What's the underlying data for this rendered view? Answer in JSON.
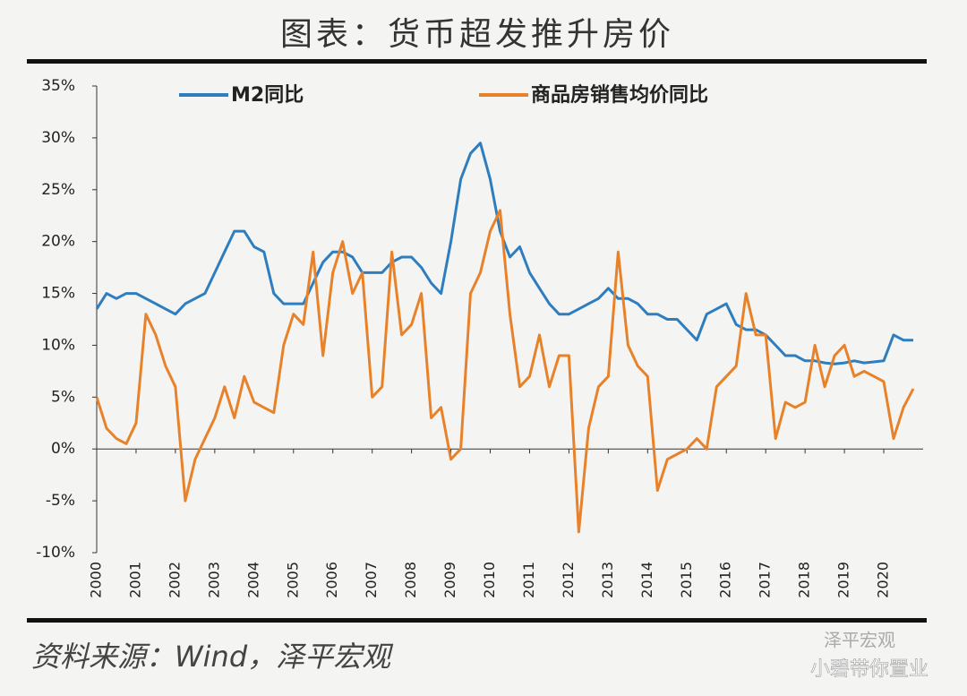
{
  "header": {
    "title": "图表：货币超发推升房价"
  },
  "chart_data": {
    "type": "line",
    "x": [
      2000,
      2000.25,
      2000.5,
      2000.75,
      2001,
      2001.25,
      2001.5,
      2001.75,
      2002,
      2002.25,
      2002.5,
      2002.75,
      2003,
      2003.25,
      2003.5,
      2003.75,
      2004,
      2004.25,
      2004.5,
      2004.75,
      2005,
      2005.25,
      2005.5,
      2005.75,
      2006,
      2006.25,
      2006.5,
      2006.75,
      2007,
      2007.25,
      2007.5,
      2007.75,
      2008,
      2008.25,
      2008.5,
      2008.75,
      2009,
      2009.25,
      2009.5,
      2009.75,
      2010,
      2010.25,
      2010.5,
      2010.75,
      2011,
      2011.25,
      2011.5,
      2011.75,
      2012,
      2012.25,
      2012.5,
      2012.75,
      2013,
      2013.25,
      2013.5,
      2013.75,
      2014,
      2014.25,
      2014.5,
      2014.75,
      2015,
      2015.25,
      2015.5,
      2015.75,
      2016,
      2016.25,
      2016.5,
      2016.75,
      2017,
      2017.25,
      2017.5,
      2017.75,
      2018,
      2018.25,
      2018.5,
      2018.75,
      2019,
      2019.25,
      2019.5,
      2019.75,
      2020,
      2020.25,
      2020.5,
      2020.75
    ],
    "series": [
      {
        "name": "M2同比",
        "color": "#2e7ebf",
        "values": [
          13.5,
          15,
          14.5,
          15,
          15,
          14.5,
          14,
          13.5,
          13,
          14,
          14.5,
          15,
          17,
          19,
          21,
          21,
          19.5,
          19,
          15,
          14,
          14,
          14,
          16,
          18,
          19,
          19,
          18.5,
          17,
          17,
          17,
          18,
          18.5,
          18.5,
          17.5,
          16,
          15,
          20,
          26,
          28.5,
          29.5,
          26,
          21,
          18.5,
          19.5,
          17,
          15.5,
          14,
          13,
          13,
          13.5,
          14,
          14.5,
          15.5,
          14.5,
          14.5,
          14,
          13,
          13,
          12.5,
          12.5,
          11.5,
          10.5,
          13,
          13.5,
          14,
          12,
          11.5,
          11.5,
          11,
          10,
          9,
          9,
          8.5,
          8.5,
          8.3,
          8.2,
          8.3,
          8.5,
          8.3,
          8.4,
          8.5,
          11,
          10.5,
          10.5
        ]
      },
      {
        "name": "商品房销售均价同比",
        "color": "#e8822a",
        "values": [
          5,
          2,
          1,
          0.5,
          2.5,
          13,
          11,
          8,
          6,
          -5,
          -1,
          1,
          3,
          6,
          3,
          7,
          4.5,
          4,
          3.5,
          10,
          13,
          12,
          19,
          9,
          17,
          20,
          15,
          17,
          5,
          6,
          19,
          11,
          12,
          15,
          3,
          4,
          -1,
          0,
          15,
          17,
          21,
          23,
          13,
          6,
          7,
          11,
          6,
          9,
          9,
          -8,
          2,
          6,
          7,
          19,
          10,
          8,
          7,
          -4,
          -1,
          -0.5,
          0,
          1,
          0,
          6,
          7,
          8,
          15,
          11,
          11,
          1,
          4.5,
          4,
          4.5,
          10,
          6,
          9,
          10,
          7,
          7.5,
          7,
          6.5,
          1,
          4,
          5.8
        ]
      }
    ],
    "xlim": [
      2000,
      2021
    ],
    "xticks": [
      2000,
      2001,
      2002,
      2003,
      2004,
      2005,
      2006,
      2007,
      2008,
      2009,
      2010,
      2011,
      2012,
      2013,
      2014,
      2015,
      2016,
      2017,
      2018,
      2019,
      2020
    ],
    "ylim": [
      -10,
      35
    ],
    "yticks": [
      {
        "value": -10,
        "label": "-10%"
      },
      {
        "value": -5,
        "label": "-5%"
      },
      {
        "value": 0,
        "label": "0%"
      },
      {
        "value": 5,
        "label": "5%"
      },
      {
        "value": 10,
        "label": "10%"
      },
      {
        "value": 15,
        "label": "15%"
      },
      {
        "value": 20,
        "label": "20%"
      },
      {
        "value": 25,
        "label": "25%"
      },
      {
        "value": 30,
        "label": "30%"
      },
      {
        "value": 35,
        "label": "35%"
      }
    ],
    "grid": false
  },
  "footer": {
    "source": "资料来源：Wind，泽平宏观",
    "watermark": "泽平宏观",
    "account": "小碧带你置业"
  }
}
